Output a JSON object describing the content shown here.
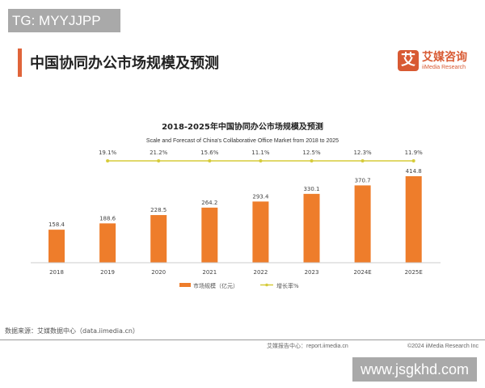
{
  "watermark_top": "TG: MYYJJPP",
  "watermark_bottom": "www.jsgkhd.com",
  "page_title": "中国协同办公市场规模及预测",
  "logo": {
    "mark": "艾",
    "cn": "艾媒咨询",
    "en": "iiMedia Research"
  },
  "source": "数据来源：艾媒数据中心（data.iimedia.cn）",
  "footer": {
    "report": "艾媒报告中心：report.iimedia.cn",
    "copyright": "©2024  iiMedia Research  Inc"
  },
  "chart_data": {
    "type": "bar",
    "title": "2018-2025年中国协同办公市场规模及预测",
    "subtitle": "Scale and Forecast of China's Collaborative Office Market from 2018 to 2025",
    "categories": [
      "2018",
      "2019",
      "2020",
      "2021",
      "2022",
      "2023",
      "2024E",
      "2025E"
    ],
    "series": [
      {
        "name": "市场规模（亿元）",
        "type": "bar",
        "color": "#ee7d2b",
        "values": [
          158.4,
          188.6,
          228.5,
          264.2,
          293.4,
          330.1,
          370.7,
          414.8
        ]
      },
      {
        "name": "增长率%",
        "type": "line",
        "color": "#d6cb3a",
        "values": [
          null,
          19.1,
          21.2,
          15.6,
          11.1,
          12.5,
          12.3,
          11.9
        ],
        "labels": [
          "",
          "19.1%",
          "21.2%",
          "15.6%",
          "11.1%",
          "12.5%",
          "12.3%",
          "11.9%"
        ]
      }
    ],
    "legend": "bottom",
    "grid": false
  }
}
